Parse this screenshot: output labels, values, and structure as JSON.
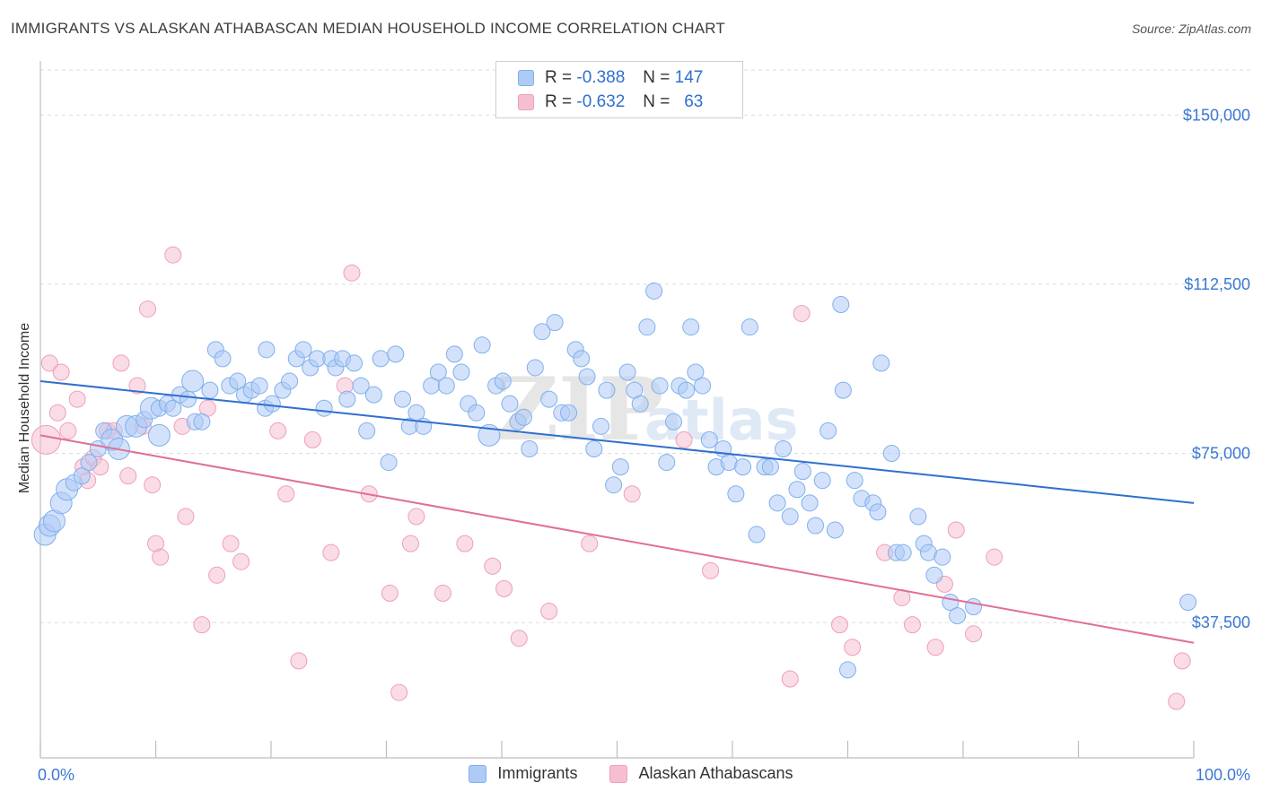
{
  "title": "IMMIGRANTS VS ALASKAN ATHABASCAN MEDIAN HOUSEHOLD INCOME CORRELATION CHART",
  "source": "Source: ZipAtlas.com",
  "watermark": "ZIPatlas",
  "legend": {
    "rows": [
      {
        "r_label": "R =",
        "r_value": "-0.388",
        "n_label": "N =",
        "n_value": "147",
        "color": "#aecbf5"
      },
      {
        "r_label": "R =",
        "r_value": "-0.632",
        "n_label": "N =",
        "n_value": "63",
        "color": "#f6bfd1"
      }
    ]
  },
  "chart_data": {
    "type": "scatter",
    "title": "IMMIGRANTS VS ALASKAN ATHABASCAN MEDIAN HOUSEHOLD INCOME CORRELATION CHART",
    "xlabel": "",
    "ylabel": "Median Household Income",
    "xlim": [
      0,
      100
    ],
    "ylim": [
      7500,
      160000
    ],
    "x_tick_labels": [
      "0.0%",
      "100.0%"
    ],
    "y_ticks": [
      37500,
      75000,
      112500,
      150000
    ],
    "y_tick_labels": [
      "$37,500",
      "$75,000",
      "$112,500",
      "$150,000"
    ],
    "grid": true,
    "series": [
      {
        "name": "Immigrants",
        "color": "#7fb0ec",
        "fill": "#aecbf5",
        "line_color": "#2f6fd0",
        "trend": {
          "x": [
            0,
            100
          ],
          "y": [
            91000,
            64000
          ]
        },
        "points": [
          [
            0.4,
            57000,
            "L"
          ],
          [
            0.8,
            59000,
            "L"
          ],
          [
            1.2,
            60000,
            "L"
          ],
          [
            1.8,
            64000,
            "L"
          ],
          [
            2.3,
            67000,
            "L"
          ],
          [
            2.9,
            68500,
            "M"
          ],
          [
            3.6,
            70000,
            "M"
          ],
          [
            4.2,
            73000,
            "M"
          ],
          [
            5.0,
            76000,
            "M"
          ],
          [
            5.5,
            80000,
            "M"
          ],
          [
            6.2,
            78000,
            "L"
          ],
          [
            6.8,
            76000,
            "L"
          ],
          [
            7.5,
            81000,
            "L"
          ],
          [
            8.3,
            81000,
            "L"
          ],
          [
            9.0,
            82500,
            "M"
          ],
          [
            9.6,
            85000,
            "L"
          ],
          [
            10.3,
            85000,
            "M"
          ],
          [
            10.3,
            79000,
            "L"
          ],
          [
            11.0,
            86000,
            "M"
          ],
          [
            11.5,
            85000,
            "M"
          ],
          [
            12.1,
            88000,
            "M"
          ],
          [
            12.8,
            87000,
            "M"
          ],
          [
            13.4,
            82000,
            "M"
          ],
          [
            14.0,
            82000,
            "M"
          ],
          [
            13.2,
            91000,
            "L"
          ],
          [
            14.7,
            89000,
            "M"
          ],
          [
            15.2,
            98000,
            "M"
          ],
          [
            15.8,
            96000,
            "M"
          ],
          [
            16.4,
            90000,
            "M"
          ],
          [
            17.1,
            91000,
            "M"
          ],
          [
            17.7,
            88000,
            "M"
          ],
          [
            18.3,
            89000,
            "M"
          ],
          [
            19.0,
            90000,
            "M"
          ],
          [
            19.5,
            85000,
            "M"
          ],
          [
            20.1,
            86000,
            "M"
          ],
          [
            19.6,
            98000,
            "M"
          ],
          [
            21.0,
            89000,
            "M"
          ],
          [
            21.6,
            91000,
            "M"
          ],
          [
            22.2,
            96000,
            "M"
          ],
          [
            22.8,
            98000,
            "M"
          ],
          [
            23.4,
            94000,
            "M"
          ],
          [
            24.0,
            96000,
            "M"
          ],
          [
            24.6,
            85000,
            "M"
          ],
          [
            25.2,
            96000,
            "M"
          ],
          [
            25.6,
            94000,
            "M"
          ],
          [
            26.2,
            96000,
            "M"
          ],
          [
            26.6,
            87000,
            "M"
          ],
          [
            27.2,
            95000,
            "M"
          ],
          [
            27.8,
            90000,
            "M"
          ],
          [
            28.3,
            80000,
            "M"
          ],
          [
            28.9,
            88000,
            "M"
          ],
          [
            29.5,
            96000,
            "M"
          ],
          [
            30.2,
            73000,
            "M"
          ],
          [
            30.8,
            97000,
            "M"
          ],
          [
            31.4,
            87000,
            "M"
          ],
          [
            32.0,
            81000,
            "M"
          ],
          [
            32.6,
            84000,
            "M"
          ],
          [
            33.2,
            81000,
            "M"
          ],
          [
            33.9,
            90000,
            "M"
          ],
          [
            34.5,
            93000,
            "M"
          ],
          [
            35.2,
            90000,
            "M"
          ],
          [
            35.9,
            97000,
            "M"
          ],
          [
            36.5,
            93000,
            "M"
          ],
          [
            37.1,
            86000,
            "M"
          ],
          [
            37.8,
            84000,
            "M"
          ],
          [
            38.3,
            99000,
            "M"
          ],
          [
            38.9,
            79000,
            "L"
          ],
          [
            39.5,
            90000,
            "M"
          ],
          [
            40.1,
            91000,
            "M"
          ],
          [
            40.7,
            86000,
            "M"
          ],
          [
            41.4,
            82000,
            "M"
          ],
          [
            41.9,
            83000,
            "M"
          ],
          [
            42.4,
            76000,
            "M"
          ],
          [
            42.9,
            94000,
            "M"
          ],
          [
            43.5,
            102000,
            "M"
          ],
          [
            44.1,
            87000,
            "M"
          ],
          [
            44.6,
            104000,
            "M"
          ],
          [
            45.2,
            84000,
            "M"
          ],
          [
            45.8,
            84000,
            "M"
          ],
          [
            46.4,
            98000,
            "M"
          ],
          [
            46.9,
            96000,
            "M"
          ],
          [
            47.4,
            92000,
            "M"
          ],
          [
            48.0,
            76000,
            "M"
          ],
          [
            48.6,
            81000,
            "M"
          ],
          [
            49.1,
            89000,
            "M"
          ],
          [
            49.7,
            68000,
            "M"
          ],
          [
            50.3,
            72000,
            "M"
          ],
          [
            50.9,
            93000,
            "M"
          ],
          [
            51.5,
            89000,
            "M"
          ],
          [
            52.0,
            86000,
            "M"
          ],
          [
            52.6,
            103000,
            "M"
          ],
          [
            53.2,
            111000,
            "M"
          ],
          [
            53.7,
            90000,
            "M"
          ],
          [
            54.3,
            73000,
            "M"
          ],
          [
            54.9,
            82000,
            "M"
          ],
          [
            55.4,
            90000,
            "M"
          ],
          [
            56.0,
            89000,
            "M"
          ],
          [
            56.4,
            103000,
            "M"
          ],
          [
            56.8,
            93000,
            "M"
          ],
          [
            57.4,
            90000,
            "M"
          ],
          [
            58.0,
            78000,
            "M"
          ],
          [
            58.6,
            72000,
            "M"
          ],
          [
            59.2,
            76000,
            "M"
          ],
          [
            59.7,
            73000,
            "M"
          ],
          [
            60.3,
            66000,
            "M"
          ],
          [
            60.9,
            72000,
            "M"
          ],
          [
            61.5,
            103000,
            "M"
          ],
          [
            62.1,
            57000,
            "M"
          ],
          [
            62.8,
            72000,
            "M"
          ],
          [
            63.3,
            72000,
            "M"
          ],
          [
            63.9,
            64000,
            "M"
          ],
          [
            64.4,
            76000,
            "M"
          ],
          [
            65.0,
            61000,
            "M"
          ],
          [
            65.6,
            67000,
            "M"
          ],
          [
            66.1,
            71000,
            "M"
          ],
          [
            66.7,
            64000,
            "M"
          ],
          [
            67.2,
            59000,
            "M"
          ],
          [
            67.8,
            69000,
            "M"
          ],
          [
            68.3,
            80000,
            "M"
          ],
          [
            68.9,
            58000,
            "M"
          ],
          [
            69.4,
            108000,
            "M"
          ],
          [
            69.6,
            89000,
            "M"
          ],
          [
            70.0,
            27000,
            "M"
          ],
          [
            70.6,
            69000,
            "M"
          ],
          [
            71.2,
            65000,
            "M"
          ],
          [
            72.2,
            64000,
            "M"
          ],
          [
            72.6,
            62000,
            "M"
          ],
          [
            72.9,
            95000,
            "M"
          ],
          [
            73.8,
            75000,
            "M"
          ],
          [
            74.2,
            53000,
            "M"
          ],
          [
            74.8,
            53000,
            "M"
          ],
          [
            76.1,
            61000,
            "M"
          ],
          [
            76.6,
            55000,
            "M"
          ],
          [
            77.0,
            53000,
            "M"
          ],
          [
            77.5,
            48000,
            "M"
          ],
          [
            78.2,
            52000,
            "M"
          ],
          [
            78.9,
            42000,
            "M"
          ],
          [
            79.5,
            39000,
            "M"
          ],
          [
            80.9,
            41000,
            "M"
          ],
          [
            99.5,
            42000,
            "M"
          ]
        ]
      },
      {
        "name": "Alaskan Athabascans",
        "color": "#ee9fb9",
        "fill": "#f6bfd1",
        "line_color": "#e06e98",
        "trend": {
          "x": [
            0,
            100
          ],
          "y": [
            79000,
            33000
          ]
        },
        "points": [
          [
            0.5,
            78000,
            "XL"
          ],
          [
            0.8,
            95000,
            "M"
          ],
          [
            1.5,
            84000,
            "M"
          ],
          [
            1.8,
            93000,
            "M"
          ],
          [
            2.4,
            80000,
            "M"
          ],
          [
            3.2,
            87000,
            "M"
          ],
          [
            3.7,
            72000,
            "M"
          ],
          [
            4.1,
            69000,
            "M"
          ],
          [
            4.6,
            74000,
            "M"
          ],
          [
            5.2,
            72000,
            "M"
          ],
          [
            5.8,
            80000,
            "M"
          ],
          [
            6.4,
            80000,
            "M"
          ],
          [
            7.0,
            95000,
            "M"
          ],
          [
            7.6,
            70000,
            "M"
          ],
          [
            8.4,
            90000,
            "M"
          ],
          [
            8.9,
            81000,
            "M"
          ],
          [
            9.3,
            107000,
            "M"
          ],
          [
            9.7,
            68000,
            "M"
          ],
          [
            10.0,
            55000,
            "M"
          ],
          [
            10.4,
            52000,
            "M"
          ],
          [
            11.5,
            119000,
            "M"
          ],
          [
            12.3,
            81000,
            "M"
          ],
          [
            12.6,
            61000,
            "M"
          ],
          [
            14.0,
            37000,
            "M"
          ],
          [
            14.5,
            85000,
            "M"
          ],
          [
            15.3,
            48000,
            "M"
          ],
          [
            16.5,
            55000,
            "M"
          ],
          [
            17.4,
            51000,
            "M"
          ],
          [
            20.6,
            80000,
            "M"
          ],
          [
            21.3,
            66000,
            "M"
          ],
          [
            22.4,
            29000,
            "M"
          ],
          [
            23.6,
            78000,
            "M"
          ],
          [
            25.2,
            53000,
            "M"
          ],
          [
            26.4,
            90000,
            "M"
          ],
          [
            27.0,
            115000,
            "M"
          ],
          [
            28.5,
            66000,
            "M"
          ],
          [
            30.3,
            44000,
            "M"
          ],
          [
            31.1,
            22000,
            "M"
          ],
          [
            32.1,
            55000,
            "M"
          ],
          [
            32.6,
            61000,
            "M"
          ],
          [
            34.9,
            44000,
            "M"
          ],
          [
            36.8,
            55000,
            "M"
          ],
          [
            39.2,
            50000,
            "M"
          ],
          [
            40.2,
            45000,
            "M"
          ],
          [
            41.5,
            34000,
            "M"
          ],
          [
            44.1,
            40000,
            "M"
          ],
          [
            47.6,
            55000,
            "M"
          ],
          [
            51.3,
            66000,
            "M"
          ],
          [
            55.8,
            78000,
            "M"
          ],
          [
            58.1,
            49000,
            "M"
          ],
          [
            65.0,
            25000,
            "M"
          ],
          [
            66.0,
            106000,
            "M"
          ],
          [
            69.3,
            37000,
            "M"
          ],
          [
            70.4,
            32000,
            "M"
          ],
          [
            73.2,
            53000,
            "M"
          ],
          [
            74.7,
            43000,
            "M"
          ],
          [
            75.6,
            37000,
            "M"
          ],
          [
            77.6,
            32000,
            "M"
          ],
          [
            78.4,
            46000,
            "M"
          ],
          [
            79.4,
            58000,
            "M"
          ],
          [
            80.9,
            35000,
            "M"
          ],
          [
            82.7,
            52000,
            "M"
          ],
          [
            99.0,
            29000,
            "M"
          ],
          [
            98.5,
            20000,
            "M"
          ]
        ]
      }
    ]
  },
  "bottom_legend": {
    "items": [
      {
        "label": "Immigrants",
        "color": "#aecbf5",
        "border": "#7fb0ec"
      },
      {
        "label": "Alaskan Athabascans",
        "color": "#f6bfd1",
        "border": "#ee9fb9"
      }
    ]
  }
}
